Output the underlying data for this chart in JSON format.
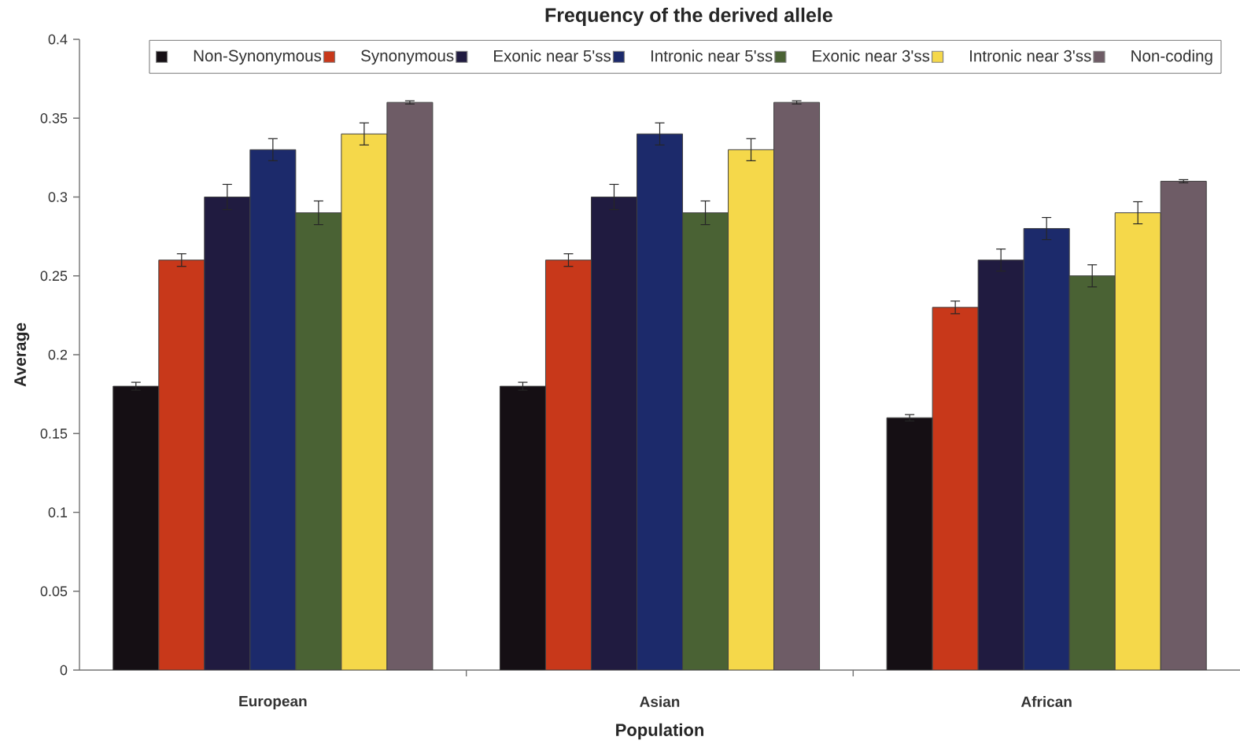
{
  "chart_data": {
    "type": "bar",
    "title": "Frequency of the derived allele",
    "xlabel": "Population",
    "ylabel": "Average",
    "categories": [
      "European",
      "Asian",
      "African"
    ],
    "series": [
      {
        "name": "Non-Synonymous",
        "color": "#150f14",
        "values": [
          0.18,
          0.18,
          0.16
        ],
        "errors": [
          0.0025,
          0.0025,
          0.002
        ]
      },
      {
        "name": "Synonymous",
        "color": "#c8381a",
        "values": [
          0.26,
          0.26,
          0.23
        ],
        "errors": [
          0.004,
          0.004,
          0.004
        ]
      },
      {
        "name": "Exonic near 5'ss",
        "color": "#201b40",
        "values": [
          0.3,
          0.3,
          0.26
        ],
        "errors": [
          0.008,
          0.008,
          0.007
        ]
      },
      {
        "name": "Intronic near 5'ss",
        "color": "#1c2a6b",
        "values": [
          0.33,
          0.34,
          0.28
        ],
        "errors": [
          0.007,
          0.007,
          0.007
        ]
      },
      {
        "name": "Exonic near 3'ss",
        "color": "#4a6234",
        "values": [
          0.29,
          0.29,
          0.25
        ],
        "errors": [
          0.0075,
          0.0075,
          0.007
        ]
      },
      {
        "name": "Intronic near 3'ss",
        "color": "#f5d84a",
        "values": [
          0.34,
          0.33,
          0.29
        ],
        "errors": [
          0.007,
          0.007,
          0.007
        ]
      },
      {
        "name": "Non-coding",
        "color": "#6e5c66",
        "values": [
          0.36,
          0.36,
          0.31
        ],
        "errors": [
          0.001,
          0.001,
          0.001
        ]
      }
    ],
    "ylim": [
      0,
      0.4
    ],
    "yticks": [
      0,
      0.05,
      0.1,
      0.15,
      0.2,
      0.25,
      0.3,
      0.35,
      0.4
    ],
    "legend": "top"
  }
}
